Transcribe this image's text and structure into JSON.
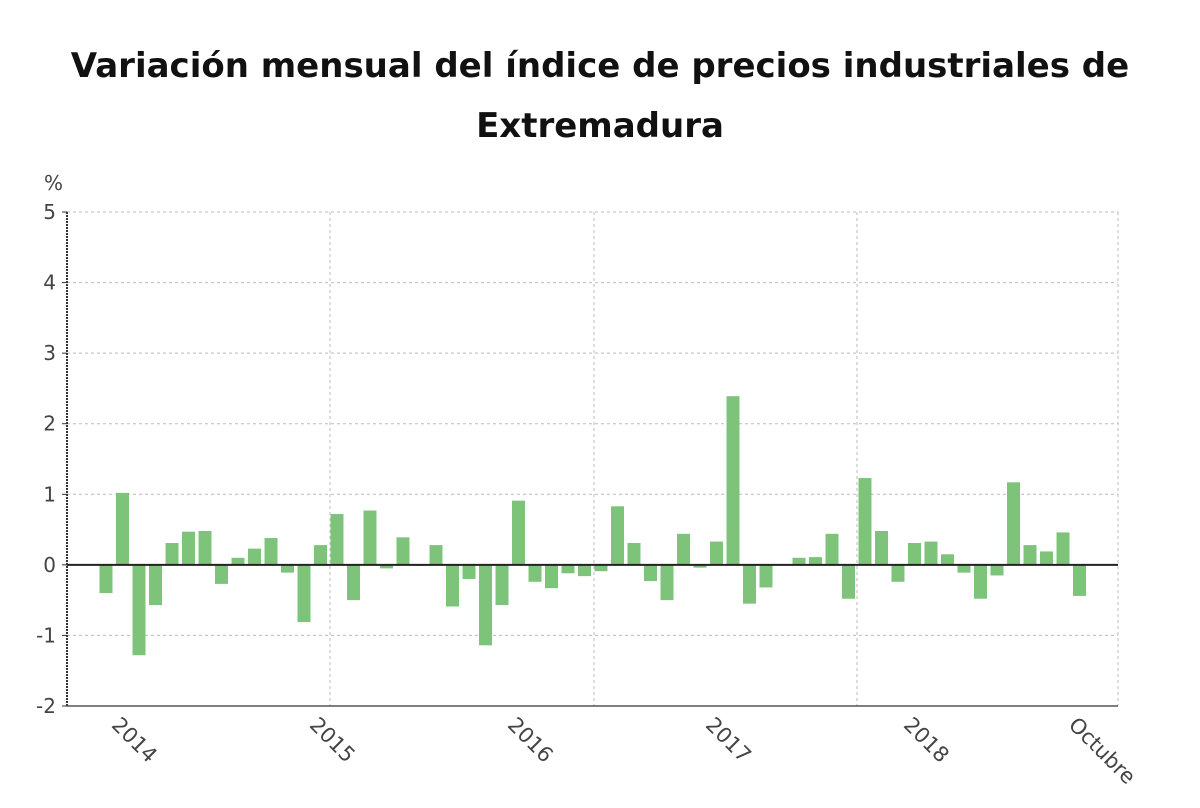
{
  "chart_data": {
    "type": "bar",
    "title": "Variación mensual del índice de precios industriales de Extremadura",
    "ylabel": "%",
    "ylim": [
      -2,
      5
    ],
    "yticks": [
      5,
      4,
      3,
      2,
      1,
      0,
      -1,
      -2
    ],
    "grid": true,
    "bar_color": "#7dc47a",
    "x_tick_labels": [
      {
        "label": "2014",
        "bar": 1
      },
      {
        "label": "2015",
        "bar": 13
      },
      {
        "label": "2016",
        "bar": 25
      },
      {
        "label": "2017",
        "bar": 37
      },
      {
        "label": "2018",
        "bar": 49
      },
      {
        "label": "Octubre",
        "bar": 59
      }
    ],
    "values": [
      -0.4,
      1.02,
      -1.28,
      -0.57,
      0.31,
      0.47,
      0.48,
      -0.27,
      0.1,
      0.23,
      0.38,
      -0.11,
      -0.81,
      0.28,
      0.72,
      -0.5,
      0.77,
      -0.05,
      0.39,
      -0.01,
      0.28,
      -0.59,
      -0.2,
      -1.14,
      -0.57,
      0.91,
      -0.24,
      -0.33,
      -0.12,
      -0.16,
      -0.09,
      0.83,
      0.31,
      -0.23,
      -0.5,
      0.44,
      -0.04,
      0.33,
      2.39,
      -0.55,
      -0.32,
      0.01,
      0.1,
      0.11,
      0.44,
      -0.48,
      1.23,
      0.48,
      -0.24,
      0.31,
      0.33,
      0.15,
      -0.11,
      -0.48,
      -0.15,
      1.17,
      0.28,
      0.19,
      0.46,
      -0.44
    ]
  }
}
